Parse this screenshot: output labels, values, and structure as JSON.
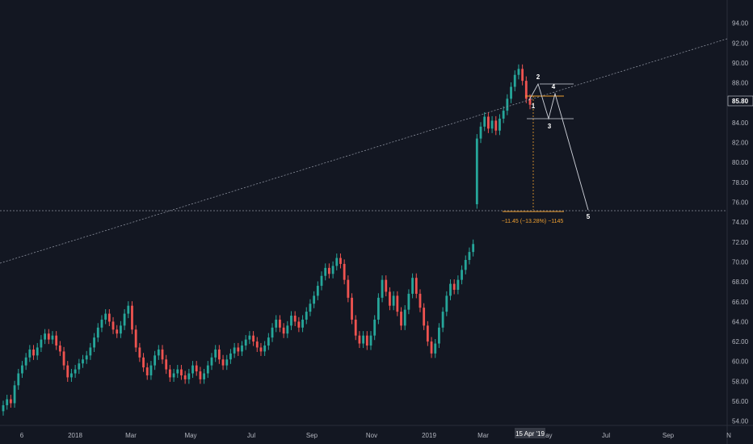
{
  "chart_data": {
    "type": "candlestick",
    "x_ticks": [
      "6",
      "2018",
      "Mar",
      "May",
      "Jul",
      "Sep",
      "Nov",
      "2019",
      "Mar",
      "May",
      "Jul",
      "Sep",
      "N"
    ],
    "y_ticks": [
      "54.00",
      "56.00",
      "58.00",
      "60.00",
      "62.00",
      "64.00",
      "66.00",
      "68.00",
      "70.00",
      "72.00",
      "74.00",
      "76.00",
      "78.00",
      "80.00",
      "82.00",
      "84.00",
      "86.00",
      "88.00",
      "90.00",
      "92.00",
      "94.00"
    ],
    "ylim": [
      53,
      96
    ],
    "last_price": "85.80",
    "crosshair_date": "15 Apr '19",
    "measurement_label": "−11.45 (−13.28%) −1145",
    "wave_labels": [
      "1",
      "2",
      "3",
      "4",
      "5"
    ],
    "series": [
      {
        "values": [
          [
            55.0,
            55.6
          ],
          [
            55.6,
            56.2
          ],
          [
            56.2,
            55.8
          ],
          [
            55.8,
            57.6
          ],
          [
            57.6,
            58.8
          ],
          [
            58.8,
            59.6
          ],
          [
            59.6,
            60.4
          ],
          [
            60.4,
            61.2
          ],
          [
            61.2,
            60.6
          ],
          [
            60.6,
            61.4
          ],
          [
            61.4,
            62.2
          ],
          [
            62.2,
            62.8
          ],
          [
            62.8,
            62.2
          ],
          [
            62.2,
            62.6
          ],
          [
            62.6,
            61.6
          ],
          [
            61.6,
            61.0
          ],
          [
            61.0,
            59.6
          ],
          [
            59.6,
            58.4
          ],
          [
            58.4,
            58.8
          ],
          [
            58.8,
            59.2
          ],
          [
            59.2,
            59.8
          ],
          [
            59.8,
            60.2
          ],
          [
            60.2,
            60.6
          ],
          [
            60.6,
            61.4
          ],
          [
            61.4,
            62.4
          ],
          [
            62.4,
            63.4
          ],
          [
            63.4,
            64.2
          ],
          [
            64.2,
            64.8
          ],
          [
            64.8,
            64.0
          ],
          [
            64.0,
            63.2
          ],
          [
            63.2,
            62.8
          ],
          [
            62.8,
            63.6
          ],
          [
            63.6,
            64.8
          ],
          [
            64.8,
            65.6
          ],
          [
            65.6,
            63.2
          ],
          [
            63.2,
            61.4
          ],
          [
            61.4,
            60.4
          ],
          [
            60.4,
            59.4
          ],
          [
            59.4,
            58.6
          ],
          [
            58.6,
            59.6
          ],
          [
            59.6,
            60.6
          ],
          [
            60.6,
            61.2
          ],
          [
            61.2,
            60.2
          ],
          [
            60.2,
            59.2
          ],
          [
            59.2,
            58.4
          ],
          [
            58.4,
            58.8
          ],
          [
            58.8,
            59.2
          ],
          [
            59.2,
            58.6
          ],
          [
            58.6,
            58.2
          ],
          [
            58.2,
            58.8
          ],
          [
            58.8,
            59.6
          ],
          [
            59.6,
            59.0
          ],
          [
            59.0,
            58.2
          ],
          [
            58.2,
            58.8
          ],
          [
            58.8,
            59.6
          ],
          [
            59.6,
            60.4
          ],
          [
            60.4,
            61.2
          ],
          [
            61.2,
            60.2
          ],
          [
            60.2,
            59.6
          ],
          [
            59.6,
            60.2
          ],
          [
            60.2,
            60.8
          ],
          [
            60.8,
            61.4
          ],
          [
            61.4,
            61.0
          ],
          [
            61.0,
            61.6
          ],
          [
            61.6,
            62.2
          ],
          [
            62.2,
            62.6
          ],
          [
            62.6,
            62.0
          ],
          [
            62.0,
            61.4
          ],
          [
            61.4,
            61.0
          ],
          [
            61.0,
            61.6
          ],
          [
            61.6,
            62.4
          ],
          [
            62.4,
            63.4
          ],
          [
            63.4,
            64.2
          ],
          [
            64.2,
            63.4
          ],
          [
            63.4,
            62.8
          ],
          [
            62.8,
            63.6
          ],
          [
            63.6,
            64.6
          ],
          [
            64.6,
            64.0
          ],
          [
            64.0,
            63.4
          ],
          [
            63.4,
            64.2
          ],
          [
            64.2,
            65.0
          ],
          [
            65.0,
            65.8
          ],
          [
            65.8,
            66.6
          ],
          [
            66.6,
            67.6
          ],
          [
            67.6,
            68.6
          ],
          [
            68.6,
            69.4
          ],
          [
            69.4,
            68.8
          ],
          [
            68.8,
            69.6
          ],
          [
            69.6,
            70.4
          ],
          [
            70.4,
            69.8
          ],
          [
            69.8,
            68.2
          ],
          [
            68.2,
            66.4
          ],
          [
            66.4,
            64.2
          ],
          [
            64.2,
            62.6
          ],
          [
            62.6,
            61.8
          ],
          [
            61.8,
            62.6
          ],
          [
            62.6,
            61.6
          ],
          [
            61.6,
            62.6
          ],
          [
            62.6,
            64.2
          ],
          [
            64.2,
            66.4
          ],
          [
            66.4,
            68.2
          ],
          [
            68.2,
            67.0
          ],
          [
            67.0,
            65.6
          ],
          [
            65.6,
            66.6
          ],
          [
            66.6,
            65.0
          ],
          [
            65.0,
            63.6
          ],
          [
            63.6,
            65.2
          ],
          [
            65.2,
            66.8
          ],
          [
            66.8,
            68.4
          ],
          [
            68.4,
            66.8
          ],
          [
            66.8,
            65.4
          ],
          [
            65.4,
            63.6
          ],
          [
            63.6,
            62.0
          ],
          [
            62.0,
            60.8
          ],
          [
            60.8,
            61.8
          ],
          [
            61.8,
            63.4
          ],
          [
            63.4,
            65.0
          ],
          [
            65.0,
            66.6
          ],
          [
            66.6,
            67.8
          ],
          [
            67.8,
            67.2
          ],
          [
            67.2,
            68.2
          ],
          [
            68.2,
            69.2
          ],
          [
            69.2,
            70.2
          ],
          [
            70.2,
            71.0
          ],
          [
            71.0,
            71.8
          ],
          [
            75.8,
            82.4
          ],
          [
            82.4,
            83.6
          ],
          [
            83.6,
            84.6
          ],
          [
            84.6,
            83.4
          ],
          [
            83.4,
            84.2
          ],
          [
            84.2,
            83.2
          ],
          [
            83.2,
            84.4
          ],
          [
            84.4,
            85.2
          ],
          [
            85.2,
            86.4
          ],
          [
            86.4,
            87.6
          ],
          [
            87.6,
            88.8
          ],
          [
            88.8,
            89.4
          ],
          [
            89.4,
            88.2
          ],
          [
            88.2,
            86.4
          ],
          [
            86.4,
            85.8
          ]
        ]
      }
    ]
  }
}
